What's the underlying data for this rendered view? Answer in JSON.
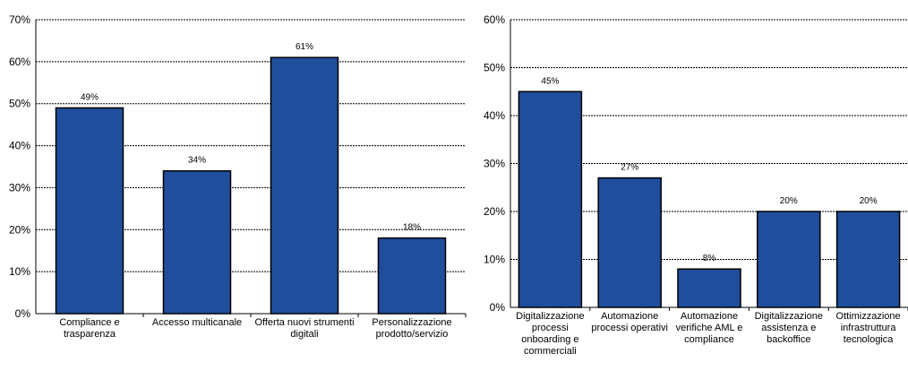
{
  "colors": {
    "bar": "#1f4e9c",
    "bar_edge": "#000000",
    "grid": "#000000",
    "axis": "#000000"
  },
  "chart_data": [
    {
      "type": "bar",
      "categories": [
        [
          "Compliance e",
          "trasparenza"
        ],
        [
          "Accesso multicanale"
        ],
        [
          "Offerta nuovi strumenti",
          "digitali"
        ],
        [
          "Personalizzazione",
          "prodotto/servizio"
        ]
      ],
      "values": [
        49,
        34,
        61,
        18
      ],
      "value_labels": [
        "49%",
        "34%",
        "61%",
        "18%"
      ],
      "yticks": [
        "0%",
        "10%",
        "20%",
        "30%",
        "40%",
        "50%",
        "60%",
        "70%"
      ],
      "ylim": [
        0,
        70
      ],
      "grid": true,
      "title": "",
      "xlabel": "",
      "ylabel": ""
    },
    {
      "type": "bar",
      "categories": [
        [
          "Digitalizzazione",
          "processi",
          "onboarding e",
          "commerciali"
        ],
        [
          "Automazione",
          "processi operativi"
        ],
        [
          "Automazione",
          "verifiche AML e",
          "compliance"
        ],
        [
          "Digitalizzazione",
          "assistenza e",
          "backoffice"
        ],
        [
          "Ottimizzazione",
          "infrastruttura",
          "tecnologica"
        ]
      ],
      "values": [
        45,
        27,
        8,
        20,
        20
      ],
      "value_labels": [
        "45%",
        "27%",
        "8%",
        "20%",
        "20%"
      ],
      "yticks": [
        "0%",
        "10%",
        "20%",
        "30%",
        "40%",
        "50%",
        "60%"
      ],
      "ylim": [
        0,
        60
      ],
      "grid": true,
      "title": "",
      "xlabel": "",
      "ylabel": ""
    }
  ]
}
